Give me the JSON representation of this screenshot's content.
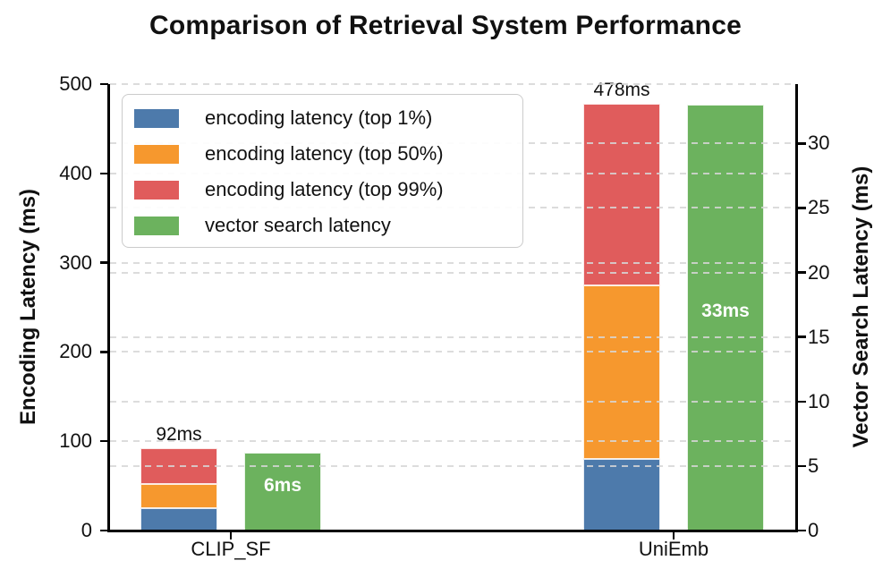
{
  "chart_data": {
    "type": "bar",
    "title": "Comparison of Retrieval System Performance",
    "categories": [
      "CLIP_SF",
      "UniEmb"
    ],
    "left_axis": {
      "label": "Encoding Latency (ms)",
      "ylim": [
        0,
        500
      ],
      "ticks": [
        0,
        100,
        200,
        300,
        400,
        500
      ]
    },
    "right_axis": {
      "label": "Vector Search Latency (ms)",
      "ylim": [
        0,
        34.6
      ],
      "ticks": [
        0,
        5,
        10,
        15,
        20,
        25,
        30
      ]
    },
    "series": [
      {
        "name": "encoding latency (top 1%)",
        "axis": "left",
        "stacked": true,
        "color": "#4d7aab",
        "values": [
          25,
          80
        ]
      },
      {
        "name": "encoding latency (top 50%)",
        "axis": "left",
        "stacked": true,
        "color": "#f6982e",
        "values": [
          27,
          195
        ]
      },
      {
        "name": "encoding latency (top 99%)",
        "axis": "left",
        "stacked": true,
        "color": "#e05c5c",
        "values": [
          40,
          203
        ]
      },
      {
        "name": "vector search latency",
        "axis": "right",
        "stacked": false,
        "color": "#6cb25e",
        "values": [
          6,
          33
        ]
      }
    ],
    "stack_totals_ms": [
      92,
      478
    ],
    "stack_total_labels": [
      "92ms",
      "478ms"
    ],
    "bar_value_labels": [
      "6ms",
      "33ms"
    ],
    "legend_position": "upper left",
    "grid": true,
    "colors": {
      "grid": "#d6d6d6",
      "spine": "#000000",
      "text": "#111111",
      "bar_label_text": "#ffffff",
      "legend_border": "#cbcbcb"
    }
  }
}
